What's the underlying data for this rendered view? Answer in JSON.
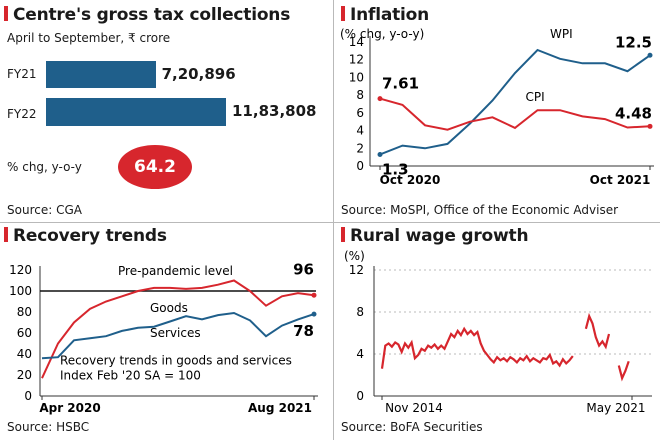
{
  "panels": {
    "gross_tax": {
      "title": "Centre's gross tax collections",
      "subtitle": "April to September, ₹ crore",
      "source": "Source: CGA",
      "pct_label": "% chg, y-o-y",
      "pct_value": "64.2"
    },
    "inflation": {
      "title": "Inflation",
      "source": "Source: MoSPI, Office of the Economic Adviser"
    },
    "recovery": {
      "title": "Recovery trends",
      "source": "Source: HSBC"
    },
    "rural": {
      "title": "Rural wage growth",
      "source": "Source: BoFA Securities"
    }
  },
  "colors": {
    "accent_red": "#d7262d",
    "bar_blue": "#1f5f8b"
  },
  "chart_data": [
    {
      "type": "bar",
      "orientation": "horizontal",
      "categories": [
        "FY21",
        "FY22"
      ],
      "values": [
        720896,
        1183808
      ],
      "value_labels": [
        "7,20,896",
        "11,83,808"
      ],
      "title": "Centre's gross tax collections",
      "subtitle": "April to September, ₹ crore"
    },
    {
      "type": "line",
      "title": "Inflation",
      "ylabel": "(% chg, y-o-y)",
      "ylim": [
        0,
        14
      ],
      "yticks": [
        "0",
        "2",
        "4",
        "6",
        "8",
        "10",
        "12",
        "14"
      ],
      "xtick_labels": [
        "Oct 2020",
        "Oct 2021"
      ],
      "series": [
        {
          "name": "WPI",
          "color": "#1f5f8b",
          "values": [
            1.3,
            2.3,
            2.0,
            2.5,
            4.8,
            7.4,
            10.5,
            13.1,
            12.1,
            11.6,
            11.6,
            10.7,
            12.5
          ],
          "start_label": "1.3",
          "end_label": "12.5"
        },
        {
          "name": "CPI",
          "color": "#d7262d",
          "values": [
            7.61,
            6.9,
            4.6,
            4.1,
            5.0,
            5.5,
            4.3,
            6.3,
            6.3,
            5.6,
            5.3,
            4.35,
            4.48
          ],
          "start_label": "7.61",
          "end_label": "4.48"
        }
      ]
    },
    {
      "type": "line",
      "title": "Recovery trends",
      "ylim": [
        0,
        120
      ],
      "yticks": [
        "0",
        "20",
        "40",
        "60",
        "80",
        "100",
        "120"
      ],
      "xtick_labels": [
        "Apr 2020",
        "Aug 2021"
      ],
      "reference_line": {
        "value": 100,
        "label": "Pre-pandemic level"
      },
      "annotation": "Recovery trends in goods and services Index Feb '20 SA = 100",
      "series": [
        {
          "name": "Goods",
          "color": "#d7262d",
          "values": [
            17,
            50,
            70,
            83,
            90,
            95,
            100,
            103,
            103,
            102,
            103,
            106,
            110,
            100,
            86,
            95,
            98,
            96
          ],
          "end_label": "96"
        },
        {
          "name": "Services",
          "color": "#1f5f8b",
          "values": [
            36,
            37,
            53,
            55,
            57,
            62,
            65,
            66,
            71,
            76,
            73,
            77,
            79,
            72,
            57,
            67,
            73,
            78
          ],
          "end_label": "78"
        }
      ]
    },
    {
      "type": "line",
      "title": "Rural wage growth",
      "ylabel": "(%)",
      "ylim": [
        0,
        12
      ],
      "yticks": [
        "0",
        "4",
        "8",
        "12"
      ],
      "xtick_labels": [
        "Nov 2014",
        "May 2021"
      ],
      "series": [
        {
          "name": "",
          "color": "#d7262d",
          "segments": [
            [
              2.6,
              4.8,
              5.0,
              4.7,
              5.1,
              4.9,
              4.2,
              5.0,
              4.6,
              5.1,
              3.6,
              3.9,
              4.5,
              4.3,
              4.8,
              4.6,
              4.9,
              4.5,
              4.8,
              4.5,
              5.2,
              5.9,
              5.6,
              6.2,
              5.8,
              6.4,
              5.9,
              6.2,
              5.8,
              6.1,
              5.0,
              4.3,
              3.9,
              3.5,
              3.2,
              3.7,
              3.4,
              3.6,
              3.3,
              3.7,
              3.5,
              3.2,
              3.6,
              3.4,
              3.8,
              3.3,
              3.6,
              3.4,
              3.2,
              3.6,
              3.5,
              3.9,
              3.1,
              3.3,
              2.9,
              3.5,
              3.1,
              3.4,
              3.8
            ],
            [
              6.4,
              7.6,
              6.9,
              5.6,
              4.8,
              5.2,
              4.7,
              5.9
            ],
            [
              2.9,
              1.7,
              2.4,
              3.3
            ]
          ],
          "segment_starts": [
            0,
            62,
            72
          ]
        }
      ],
      "x_count": 77
    }
  ]
}
